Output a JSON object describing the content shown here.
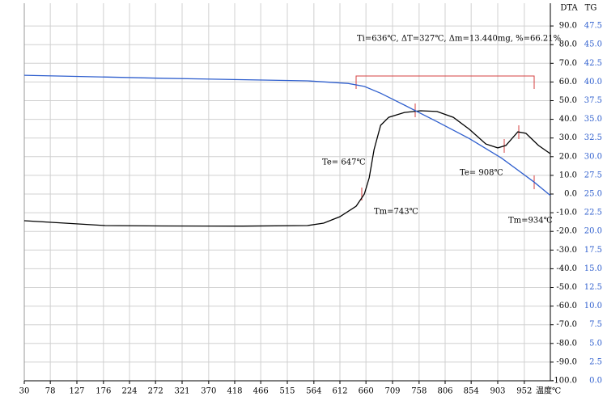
{
  "chart_data": {
    "type": "line",
    "annotations": [
      "Ti=636℃, ΔT=327℃, Δm=13.440mg, %=66.21%",
      "Te= 647℃",
      "Tm=743℃",
      "Te= 908℃",
      "Tm=934℃"
    ],
    "xlabel": "温度℃",
    "ylabel": "DTA",
    "y2label": "TG",
    "xlim": [
      30,
      1000
    ],
    "xticks": [
      30,
      78,
      127,
      176,
      224,
      272,
      321,
      370,
      418,
      466,
      515,
      564,
      612,
      660,
      709,
      758,
      806,
      854,
      903,
      952
    ],
    "ylim": [
      -100,
      100
    ],
    "yticks": [
      {
        "value": 90,
        "label": "90.0"
      },
      {
        "value": 80,
        "label": "80.0"
      },
      {
        "value": 70,
        "label": "70.0"
      },
      {
        "value": 60,
        "label": "60.0"
      },
      {
        "value": 50,
        "label": "50.0"
      },
      {
        "value": 40,
        "label": "40.0"
      },
      {
        "value": 30,
        "label": "30.0"
      },
      {
        "value": 20,
        "label": "20.0"
      },
      {
        "value": 10,
        "label": "10.0"
      },
      {
        "value": 0,
        "label": "0.0"
      },
      {
        "value": -10,
        "label": "-10.0"
      },
      {
        "value": -20,
        "label": "-20.0"
      },
      {
        "value": -30,
        "label": "-30.0"
      },
      {
        "value": -40,
        "label": "-40.0"
      },
      {
        "value": -50,
        "label": "-50.0"
      },
      {
        "value": -60,
        "label": "-60.0"
      },
      {
        "value": -70,
        "label": "-70.0"
      },
      {
        "value": -80,
        "label": "-80.0"
      },
      {
        "value": -90,
        "label": "-90.0"
      },
      {
        "value": -100,
        "label": "-100.0"
      }
    ],
    "y2lim": [
      0,
      50
    ],
    "y2ticks": [
      {
        "value": 47.5,
        "label": "47.5"
      },
      {
        "value": 45,
        "label": "45.0"
      },
      {
        "value": 42.5,
        "label": "42.5"
      },
      {
        "value": 40,
        "label": "40.0"
      },
      {
        "value": 37.5,
        "label": "37.5"
      },
      {
        "value": 35,
        "label": "35.0"
      },
      {
        "value": 32.5,
        "label": "32.5"
      },
      {
        "value": 30,
        "label": "30.0"
      },
      {
        "value": 27.5,
        "label": "27.5"
      },
      {
        "value": 25,
        "label": "25.0"
      },
      {
        "value": 22.5,
        "label": "22.5"
      },
      {
        "value": 20,
        "label": "20.0"
      },
      {
        "value": 17.5,
        "label": "17.5"
      },
      {
        "value": 15,
        "label": "15.0"
      },
      {
        "value": 12.5,
        "label": "12.5"
      },
      {
        "value": 10,
        "label": "10.0"
      },
      {
        "value": 7.5,
        "label": "7.5"
      },
      {
        "value": 5,
        "label": "5.0"
      },
      {
        "value": 2.5,
        "label": "2.5"
      },
      {
        "value": 0,
        "label": "0.0"
      }
    ],
    "grid": true,
    "series": [
      {
        "name": "DTA",
        "color": "#000000",
        "x": [
          30,
          179,
          284,
          433,
          552,
          582,
          612,
          642,
          657,
          666,
          675,
          687,
          702,
          731,
          761,
          791,
          821,
          851,
          881,
          903,
          918,
          940,
          955,
          978,
          1000
        ],
        "values": [
          -14.3,
          -16.9,
          -17.1,
          -17.2,
          -16.9,
          -15.6,
          -12.1,
          -6.5,
          0,
          8.7,
          23.8,
          36.8,
          41.1,
          43.7,
          44.6,
          44.2,
          41.1,
          34.6,
          26.8,
          24.7,
          26,
          33.3,
          32.5,
          26,
          21.6
        ]
      },
      {
        "name": "TG",
        "color": "#2f5fce",
        "axis": "y2",
        "x": [
          30,
          284,
          552,
          627,
          657,
          687,
          731,
          791,
          851,
          910,
          970,
          1000
        ],
        "values": [
          40.9,
          40.5,
          40.15,
          39.8,
          39.4,
          38.5,
          36.9,
          34.7,
          32.4,
          29.8,
          26.6,
          24.8
        ]
      }
    ]
  }
}
